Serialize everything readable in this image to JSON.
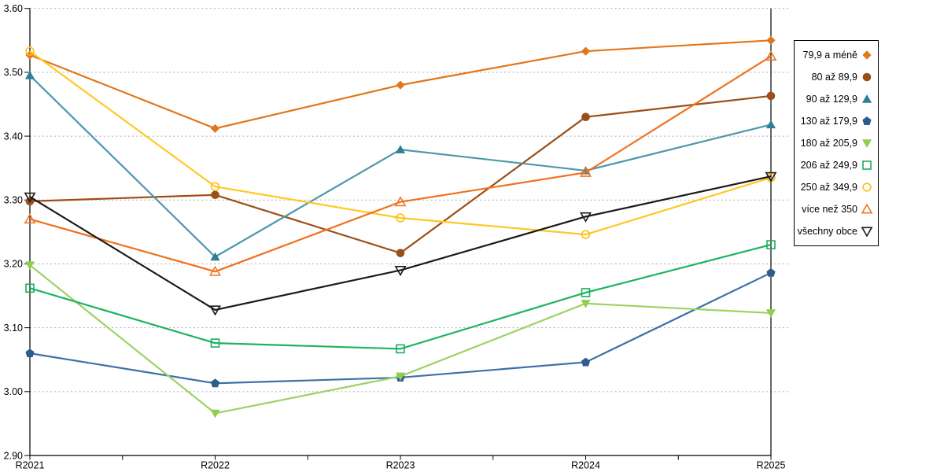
{
  "chart_data": {
    "type": "line",
    "title": "",
    "x_categories": [
      "R2021",
      "R2022",
      "R2023",
      "R2024",
      "R2025"
    ],
    "y_ticks": [
      "2.90",
      "3.00",
      "3.10",
      "3.20",
      "3.30",
      "3.40",
      "3.50",
      "3.60"
    ],
    "ylim": [
      2.9,
      3.6
    ],
    "grid": "horizontal-dotted",
    "gridline_color": "#ABABAB",
    "axis_color": "#000000",
    "legend_position": "right",
    "series": [
      {
        "name": "79,9 a méně",
        "marker": "diamond-filled",
        "color": "#E2761B",
        "line_color": "#E2761B",
        "values": [
          3.527,
          3.412,
          3.48,
          3.533,
          3.55
        ]
      },
      {
        "name": "80 až 89,9",
        "marker": "circle-filled",
        "color": "#9C4E17",
        "line_color": "#9C4E17",
        "values": [
          3.298,
          3.308,
          3.217,
          3.43,
          3.463
        ]
      },
      {
        "name": "90 až 129,9",
        "marker": "triangle-up-filled",
        "color": "#2E7F96",
        "line_color": "#4E97AD",
        "values": [
          3.495,
          3.211,
          3.379,
          3.346,
          3.418
        ]
      },
      {
        "name": "130 až 179,9",
        "marker": "pentagon-filled",
        "color": "#2F5B8F",
        "line_color": "#3E6FA8",
        "values": [
          3.06,
          3.013,
          3.022,
          3.046,
          3.186
        ]
      },
      {
        "name": "180 až 205,9",
        "marker": "triangle-down-filled",
        "color": "#8FCE4E",
        "line_color": "#9CD264",
        "values": [
          3.198,
          2.966,
          3.024,
          3.138,
          3.123
        ]
      },
      {
        "name": "206 až 249,9",
        "marker": "square-open",
        "color": "#17AF5C",
        "line_color": "#1CB45F",
        "values": [
          3.162,
          3.076,
          3.067,
          3.155,
          3.23
        ]
      },
      {
        "name": "250 až 349,9",
        "marker": "circle-open",
        "color": "#FAC112",
        "line_color": "#FFC825",
        "values": [
          3.533,
          3.321,
          3.272,
          3.246,
          3.335
        ]
      },
      {
        "name": "více než 350",
        "marker": "triangle-up-open",
        "color": "#F0762B",
        "line_color": "#F1701E",
        "values": [
          3.27,
          3.188,
          3.297,
          3.343,
          3.525
        ]
      },
      {
        "name": "všechny obce",
        "marker": "triangle-down-open",
        "color": "#1A1A1A",
        "line_color": "#1A1A1A",
        "values": [
          3.305,
          3.128,
          3.19,
          3.274,
          3.337
        ]
      }
    ]
  }
}
